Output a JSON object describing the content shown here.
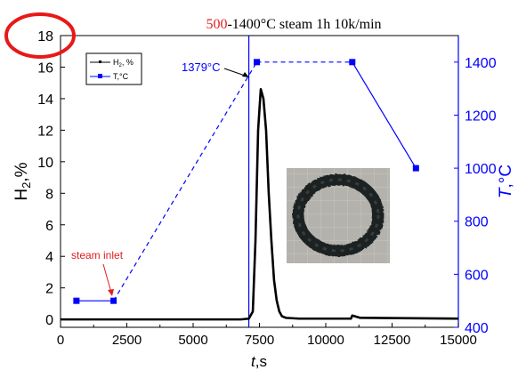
{
  "chart_data": {
    "type": "line",
    "title": {
      "highlight": "500",
      "rest": "-1400°C steam 1h 10k/min"
    },
    "x_axis": {
      "label_italic": "t",
      "label_rest": ",s",
      "range": [
        0,
        15000
      ],
      "ticks": [
        0,
        2500,
        5000,
        7500,
        10000,
        12500,
        15000
      ]
    },
    "y_left": {
      "label_main": "H",
      "label_sub": "2",
      "label_rest": ",%",
      "range": [
        -0.5,
        18
      ],
      "ticks": [
        0,
        2,
        4,
        6,
        8,
        10,
        12,
        14,
        16,
        18
      ]
    },
    "y_right": {
      "label_italic": "T",
      "label_rest": ",°C",
      "range": [
        400,
        1500
      ],
      "ticks": [
        400,
        600,
        800,
        1000,
        1200,
        1400
      ]
    },
    "legend": {
      "placement": "top-left",
      "entries": [
        {
          "label_main": "H",
          "label_sub": "2",
          "label_rest": ", %"
        },
        {
          "label_main": "T,°C",
          "label_sub": "",
          "label_rest": ""
        }
      ]
    },
    "series": [
      {
        "axis": "left",
        "color": "#000000",
        "x": [
          0,
          6800,
          7100,
          7250,
          7350,
          7450,
          7550,
          7650,
          7750,
          7850,
          7950,
          8050,
          8150,
          8250,
          8350,
          8500,
          9000,
          10950,
          11000,
          11300,
          15000
        ],
        "y": [
          0.0,
          0.0,
          0.05,
          0.5,
          5.0,
          12.0,
          14.6,
          14.0,
          12.0,
          8.0,
          5.0,
          2.5,
          1.2,
          0.5,
          0.2,
          0.1,
          0.05,
          0.05,
          0.25,
          0.1,
          0.05
        ]
      },
      {
        "axis": "right",
        "color": "#0000ff",
        "x": [
          600,
          2000,
          7400,
          11000,
          13400
        ],
        "y": [
          500,
          500,
          1400,
          1400,
          1000
        ],
        "dashed_segments": [
          1,
          2
        ]
      }
    ],
    "annotations": {
      "temp_label": "1379°C",
      "steam_label": "steam inlet",
      "vertical_line_x": 7100
    }
  },
  "colors": {
    "blue": "#0000ff",
    "red": "#e02020",
    "circle": "#e81818"
  },
  "inset_image": "black-ring-sample-photo"
}
